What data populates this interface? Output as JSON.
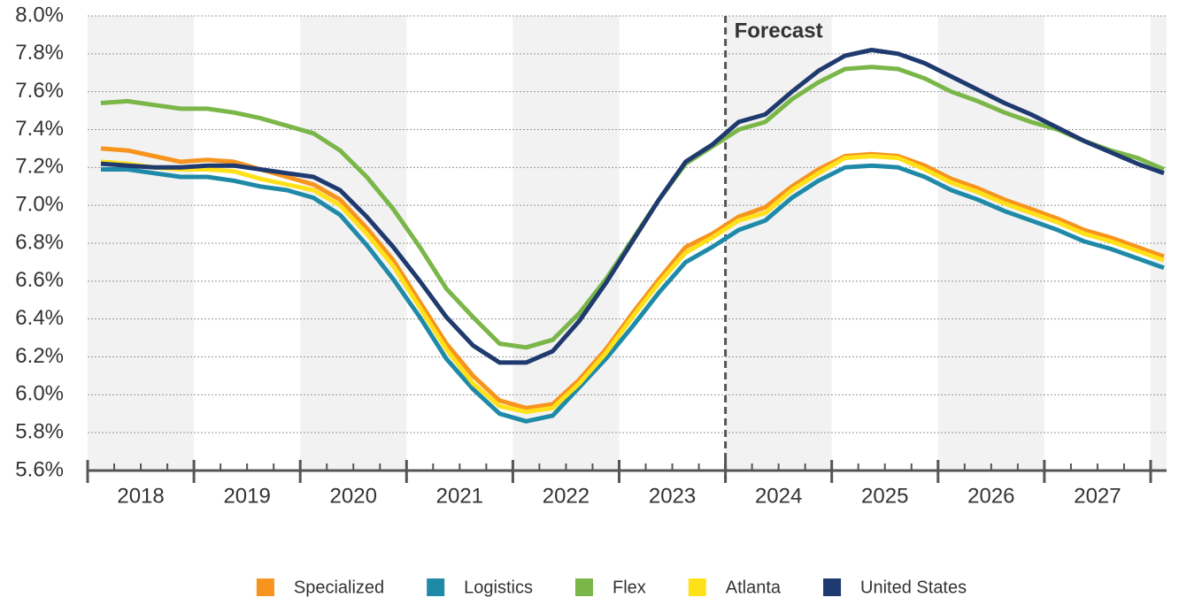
{
  "chart_data": {
    "type": "line",
    "x": [
      2018.125,
      2018.375,
      2018.625,
      2018.875,
      2019.125,
      2019.375,
      2019.625,
      2019.875,
      2020.125,
      2020.375,
      2020.625,
      2020.875,
      2021.125,
      2021.375,
      2021.625,
      2021.875,
      2022.125,
      2022.375,
      2022.625,
      2022.875,
      2023.125,
      2023.375,
      2023.625,
      2023.875,
      2024.125,
      2024.375,
      2024.625,
      2024.875,
      2025.125,
      2025.375,
      2025.625,
      2025.875,
      2026.125,
      2026.375,
      2026.625,
      2026.875,
      2027.125,
      2027.375,
      2027.625,
      2027.875,
      2028.125
    ],
    "xlim": [
      2018,
      2028.15
    ],
    "xticks": [
      {
        "value": 2018.5,
        "label": "2018"
      },
      {
        "value": 2019.5,
        "label": "2019"
      },
      {
        "value": 2020.5,
        "label": "2020"
      },
      {
        "value": 2021.5,
        "label": "2021"
      },
      {
        "value": 2022.5,
        "label": "2022"
      },
      {
        "value": 2023.5,
        "label": "2023"
      },
      {
        "value": 2024.5,
        "label": "2024"
      },
      {
        "value": 2025.5,
        "label": "2025"
      },
      {
        "value": 2026.5,
        "label": "2026"
      },
      {
        "value": 2027.5,
        "label": "2027"
      }
    ],
    "ylim": [
      5.6,
      8.0
    ],
    "yticks": [
      {
        "value": 5.6,
        "label": "5.6%"
      },
      {
        "value": 5.8,
        "label": "5.8%"
      },
      {
        "value": 6.0,
        "label": "6.0%"
      },
      {
        "value": 6.2,
        "label": "6.2%"
      },
      {
        "value": 6.4,
        "label": "6.4%"
      },
      {
        "value": 6.6,
        "label": "6.6%"
      },
      {
        "value": 6.8,
        "label": "6.8%"
      },
      {
        "value": 7.0,
        "label": "7.0%"
      },
      {
        "value": 7.2,
        "label": "7.2%"
      },
      {
        "value": 7.4,
        "label": "7.4%"
      },
      {
        "value": 7.6,
        "label": "7.6%"
      },
      {
        "value": 7.8,
        "label": "7.8%"
      },
      {
        "value": 8.0,
        "label": "8.0%"
      }
    ],
    "grid": true,
    "forecast": {
      "x": 2024,
      "label": "Forecast"
    },
    "legend": "bottom",
    "series": [
      {
        "name": "Specialized",
        "color": "#f7941d",
        "values": [
          7.3,
          7.29,
          7.26,
          7.23,
          7.24,
          7.23,
          7.19,
          7.15,
          7.11,
          7.03,
          6.88,
          6.71,
          6.49,
          6.27,
          6.1,
          5.97,
          5.93,
          5.95,
          6.08,
          6.24,
          6.43,
          6.61,
          6.78,
          6.85,
          6.94,
          6.99,
          7.1,
          7.19,
          7.26,
          7.27,
          7.26,
          7.21,
          7.14,
          7.09,
          7.03,
          6.98,
          6.93,
          6.87,
          6.83,
          6.78,
          6.73
        ]
      },
      {
        "name": "Logistics",
        "color": "#1f8aa8",
        "values": [
          7.19,
          7.19,
          7.17,
          7.15,
          7.15,
          7.13,
          7.1,
          7.08,
          7.04,
          6.95,
          6.79,
          6.61,
          6.41,
          6.19,
          6.03,
          5.9,
          5.86,
          5.89,
          6.04,
          6.19,
          6.36,
          6.54,
          6.7,
          6.78,
          6.87,
          6.92,
          7.04,
          7.13,
          7.2,
          7.21,
          7.2,
          7.15,
          7.08,
          7.03,
          6.97,
          6.92,
          6.87,
          6.81,
          6.77,
          6.72,
          6.67
        ]
      },
      {
        "name": "Flex",
        "color": "#7ab648",
        "values": [
          7.54,
          7.55,
          7.53,
          7.51,
          7.51,
          7.49,
          7.46,
          7.42,
          7.38,
          7.29,
          7.15,
          6.98,
          6.78,
          6.56,
          6.41,
          6.27,
          6.25,
          6.29,
          6.43,
          6.61,
          6.82,
          7.03,
          7.22,
          7.31,
          7.4,
          7.44,
          7.56,
          7.65,
          7.72,
          7.73,
          7.72,
          7.67,
          7.6,
          7.55,
          7.49,
          7.44,
          7.4,
          7.34,
          7.29,
          7.25,
          7.19
        ]
      },
      {
        "name": "Atlanta",
        "color": "#ffe11a",
        "values": [
          7.23,
          7.22,
          7.2,
          7.19,
          7.19,
          7.18,
          7.14,
          7.11,
          7.08,
          7.0,
          6.85,
          6.68,
          6.46,
          6.24,
          6.06,
          5.94,
          5.91,
          5.93,
          6.06,
          6.22,
          6.41,
          6.59,
          6.75,
          6.83,
          6.92,
          6.96,
          7.08,
          7.17,
          7.25,
          7.26,
          7.25,
          7.19,
          7.12,
          7.07,
          7.01,
          6.96,
          6.91,
          6.85,
          6.81,
          6.76,
          6.71
        ]
      },
      {
        "name": "United States",
        "color": "#1f3a6e",
        "values": [
          7.22,
          7.21,
          7.2,
          7.2,
          7.21,
          7.21,
          7.19,
          7.17,
          7.15,
          7.08,
          6.94,
          6.78,
          6.6,
          6.41,
          6.26,
          6.17,
          6.17,
          6.23,
          6.39,
          6.59,
          6.81,
          7.03,
          7.23,
          7.32,
          7.44,
          7.48,
          7.6,
          7.71,
          7.79,
          7.82,
          7.8,
          7.75,
          7.68,
          7.61,
          7.54,
          7.48,
          7.41,
          7.34,
          7.28,
          7.22,
          7.17
        ]
      }
    ]
  }
}
